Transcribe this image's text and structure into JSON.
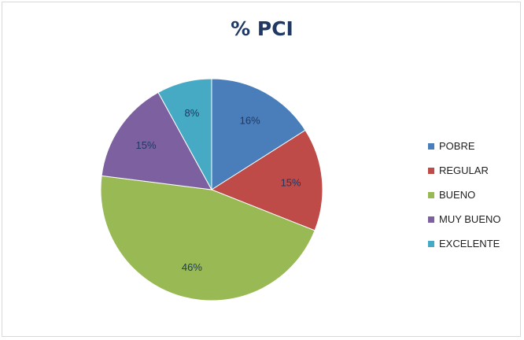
{
  "chart_data": {
    "type": "pie",
    "title": "% PCI",
    "start_angle_deg": 0,
    "direction": "clockwise",
    "slices": [
      {
        "label": "POBRE",
        "value": 16,
        "display": "16%",
        "color": "#4a7ebb"
      },
      {
        "label": "REGULAR",
        "value": 15,
        "display": "15%",
        "color": "#be4b48"
      },
      {
        "label": "BUENO",
        "value": 46,
        "display": "46%",
        "color": "#98b954"
      },
      {
        "label": "MUY BUENO",
        "value": 15,
        "display": "15%",
        "color": "#7d60a0"
      },
      {
        "label": "EXCELENTE",
        "value": 8,
        "display": "8%",
        "color": "#46aac5"
      }
    ],
    "legend": {
      "placement": "right",
      "entries": [
        "POBRE",
        "REGULAR",
        "BUENO",
        "MUY BUENO",
        "EXCELENTE"
      ]
    },
    "data_label_color": "#1f3864"
  }
}
